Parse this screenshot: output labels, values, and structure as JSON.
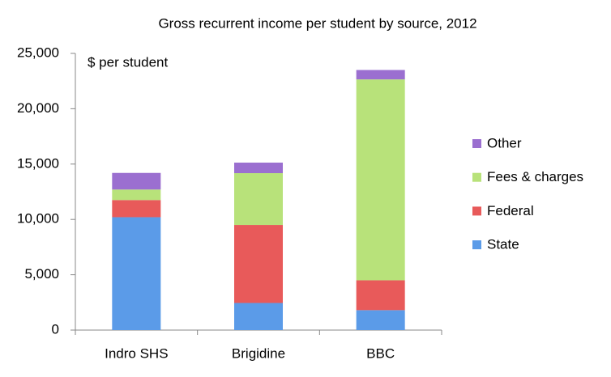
{
  "chart_data": {
    "type": "stacked_bar",
    "title": "Gross recurrent income per student by source, 2012",
    "annotation": "$ per student",
    "categories": [
      "Indro SHS",
      "Brigidine",
      "BBC"
    ],
    "series": [
      {
        "name": "State",
        "color": "#5b9be8",
        "values": [
          10200,
          2450,
          1800
        ]
      },
      {
        "name": "Federal",
        "color": "#e85a5a",
        "values": [
          1550,
          7050,
          2700
        ]
      },
      {
        "name": "Fees & charges",
        "color": "#b8e27a",
        "values": [
          950,
          4680,
          18150
        ]
      },
      {
        "name": "Other",
        "color": "#9b6fd0",
        "values": [
          1500,
          950,
          850
        ]
      }
    ],
    "ylim": [
      0,
      25000
    ],
    "yticks": [
      0,
      {
        "value": 5000,
        "label": "5,000"
      },
      {
        "value": 10000,
        "label": "10,000"
      },
      {
        "value": 15000,
        "label": "15,000"
      },
      {
        "value": 20000,
        "label": "20,000"
      },
      {
        "value": 25000,
        "label": "25,000"
      }
    ]
  }
}
